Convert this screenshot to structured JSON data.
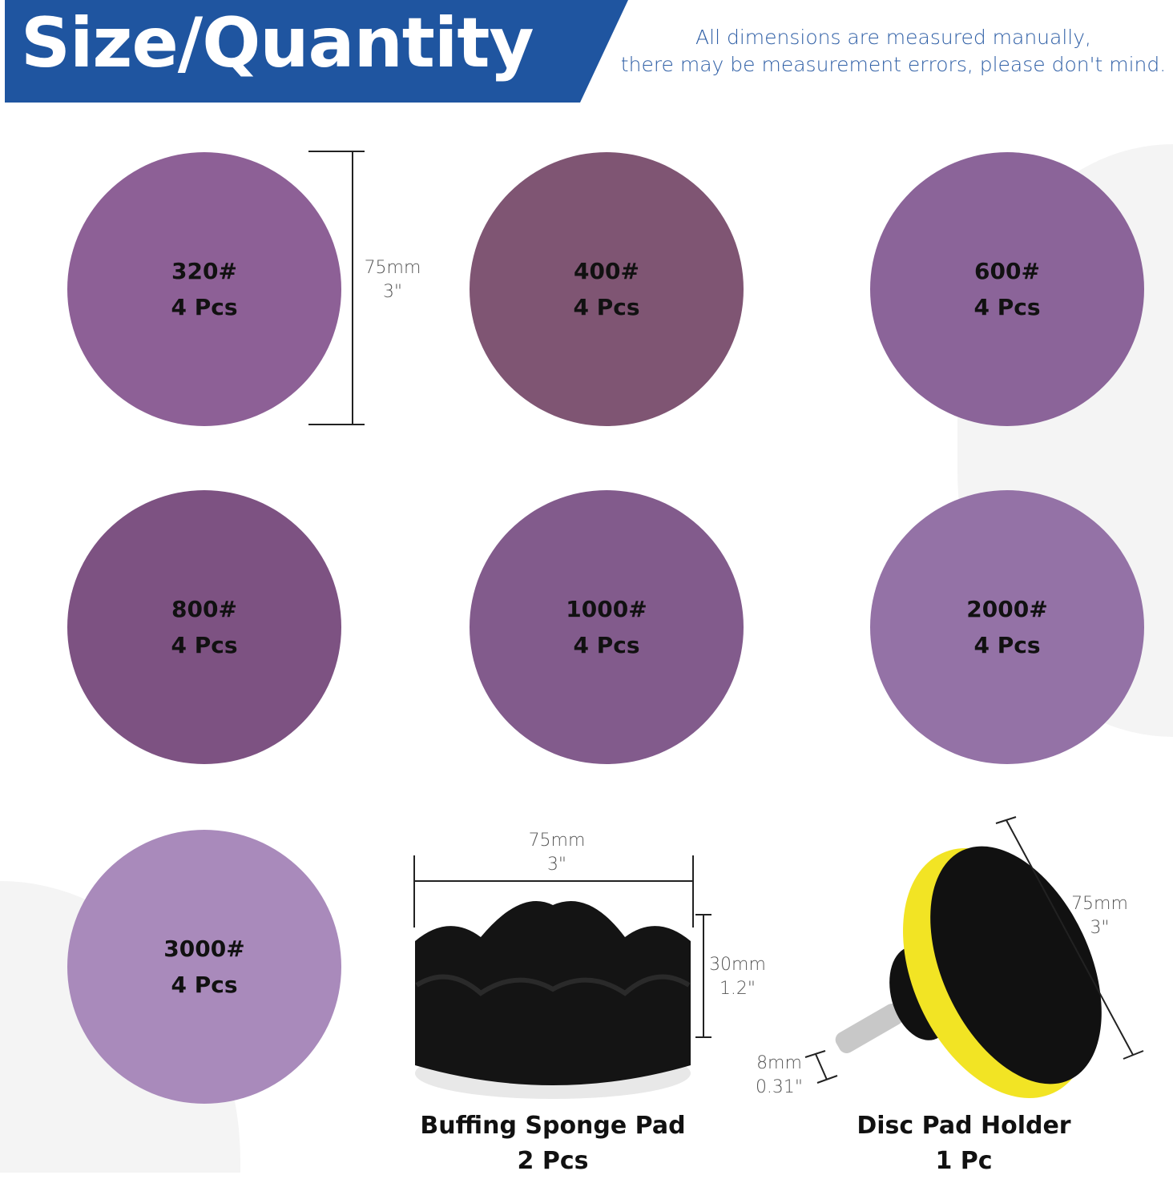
{
  "header": {
    "title": "Size/Quantity",
    "note_line1": "All dimensions are measured manually,",
    "note_line2": "there may be measurement errors, please don't mind.",
    "banner_color": "#1f55a0"
  },
  "discs": [
    {
      "grit": "320#",
      "qty": "4 Pcs",
      "color": "#8d6096"
    },
    {
      "grit": "400#",
      "qty": "4 Pcs",
      "color": "#7f5573"
    },
    {
      "grit": "600#",
      "qty": "4 Pcs",
      "color": "#8b6499"
    },
    {
      "grit": "800#",
      "qty": "4 Pcs",
      "color": "#7d5282"
    },
    {
      "grit": "1000#",
      "qty": "4 Pcs",
      "color": "#825b8c"
    },
    {
      "grit": "2000#",
      "qty": "4 Pcs",
      "color": "#9472a6"
    },
    {
      "grit": "3000#",
      "qty": "4 Pcs",
      "color": "#a98abb"
    }
  ],
  "disc_dimension": {
    "mm": "75mm",
    "inch": "3\""
  },
  "sponge": {
    "name": "Buffing Sponge Pad",
    "qty": "2 Pcs",
    "width_mm": "75mm",
    "width_in": "3\"",
    "height_mm": "30mm",
    "height_in": "1.2\""
  },
  "holder": {
    "name": "Disc Pad Holder",
    "qty": "1 Pc",
    "dia_mm": "75mm",
    "dia_in": "3\"",
    "shank_mm": "8mm",
    "shank_in": "0.31\""
  }
}
